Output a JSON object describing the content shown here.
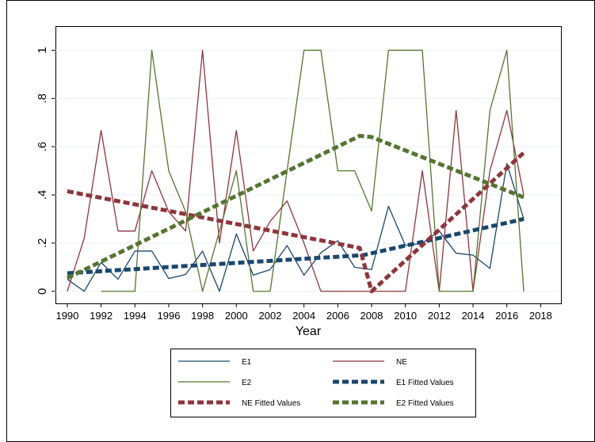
{
  "chart_data": {
    "type": "line",
    "x_label": "Year",
    "x": [
      1990,
      1991,
      1992,
      1993,
      1994,
      1995,
      1996,
      1997,
      1998,
      1999,
      2000,
      2001,
      2002,
      2003,
      2004,
      2005,
      2006,
      2007,
      2008,
      2009,
      2010,
      2011,
      2012,
      2013,
      2014,
      2015,
      2016,
      2017
    ],
    "xlim": [
      1989.3,
      2019.2
    ],
    "xticks": [
      1990,
      1992,
      1994,
      1996,
      1998,
      2000,
      2002,
      2004,
      2006,
      2008,
      2010,
      2012,
      2014,
      2016,
      2018
    ],
    "ylim": [
      -0.05,
      1.1
    ],
    "yticks": [
      0,
      {
        "value": 0.2,
        "label": ".2"
      },
      {
        "value": 0.4,
        "label": ".4"
      },
      {
        "value": 0.6,
        "label": ".6"
      },
      {
        "value": 0.8,
        "label": ".8"
      },
      1
    ],
    "grid": true,
    "legend": "bottom",
    "series": [
      {
        "name": "E1",
        "color": "#1a476f",
        "style": "solid",
        "values": [
          0.05,
          0.0,
          0.12,
          0.05,
          0.167,
          0.167,
          0.053,
          0.07,
          0.167,
          0.0,
          0.238,
          0.067,
          0.09,
          0.19,
          0.067,
          0.16,
          0.21,
          0.1,
          0.09,
          0.353,
          0.19,
          0.2,
          0.25,
          0.158,
          0.15,
          0.095,
          0.53,
          0.3
        ]
      },
      {
        "name": "NE",
        "color": "#90353b",
        "style": "solid",
        "values": [
          0,
          0.22,
          0.667,
          0.25,
          0.25,
          0.5,
          0.33,
          0.25,
          1.0,
          0.2,
          0.667,
          0.167,
          0.29,
          0.375,
          0.2,
          0,
          0,
          0,
          0,
          0,
          0,
          0.5,
          0,
          0.75,
          0,
          0.5,
          0.75,
          0.4
        ]
      },
      {
        "name": "E2",
        "color": "#55752f",
        "style": "solid",
        "values": [
          null,
          null,
          0,
          0,
          0,
          1,
          0.5,
          0.33,
          0,
          0.25,
          0.5,
          0,
          0,
          0.5,
          1,
          1,
          0.5,
          0.5,
          0.333,
          1,
          1,
          1,
          0,
          0,
          0,
          0.75,
          1,
          0
        ]
      },
      {
        "name": "E1 Fitted Values",
        "color": "#1a476f",
        "style": "dashed",
        "x": [
          1990,
          2007.5,
          2017
        ],
        "values": [
          0.075,
          0.15,
          0.3
        ]
      },
      {
        "name": "NE Fitted Values",
        "color": "#90353b",
        "style": "dashed",
        "x": [
          1990,
          2007.3,
          2008,
          2017
        ],
        "values": [
          0.415,
          0.18,
          0,
          0.575
        ]
      },
      {
        "name": "E2 Fitted Values",
        "color": "#55752f",
        "style": "dashed",
        "x": [
          1990,
          2007.3,
          2008,
          2017
        ],
        "values": [
          0.055,
          0.645,
          0.64,
          0.39
        ]
      }
    ]
  }
}
